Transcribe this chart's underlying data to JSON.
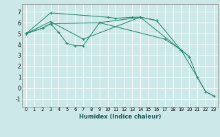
{
  "xlabel": "Humidex (Indice chaleur)",
  "background_color": "#cce8e8",
  "grid_color": "#ffffff",
  "line_color": "#2e8b74",
  "xlim": [
    -0.5,
    23.5
  ],
  "ylim": [
    -1.7,
    7.7
  ],
  "yticks": [
    -1,
    0,
    1,
    2,
    3,
    4,
    5,
    6,
    7
  ],
  "xticks": [
    0,
    1,
    2,
    3,
    4,
    5,
    6,
    7,
    8,
    9,
    10,
    11,
    12,
    13,
    14,
    15,
    16,
    17,
    18,
    19,
    20,
    21,
    22,
    23
  ],
  "series1_x": [
    0,
    3,
    10,
    11,
    13,
    14,
    16
  ],
  "series1_y": [
    5.0,
    6.9,
    6.5,
    6.4,
    6.5,
    6.5,
    6.2
  ],
  "series2_x": [
    0,
    2,
    3,
    4,
    5,
    6,
    7,
    9,
    17,
    19,
    20
  ],
  "series2_y": [
    5.0,
    5.5,
    5.9,
    5.1,
    4.1,
    3.9,
    3.9,
    6.0,
    4.5,
    3.5,
    2.9
  ],
  "series3_x": [
    0,
    2,
    3,
    9,
    14,
    16,
    19,
    20,
    21,
    22,
    23
  ],
  "series3_y": [
    5.0,
    5.5,
    5.9,
    6.0,
    6.5,
    6.2,
    3.5,
    2.9,
    1.0,
    -0.3,
    -0.7
  ],
  "series4_x": [
    0,
    3,
    7,
    14,
    19,
    21,
    22,
    23
  ],
  "series4_y": [
    5.0,
    6.1,
    4.5,
    6.5,
    3.5,
    1.0,
    -0.3,
    -0.7
  ]
}
